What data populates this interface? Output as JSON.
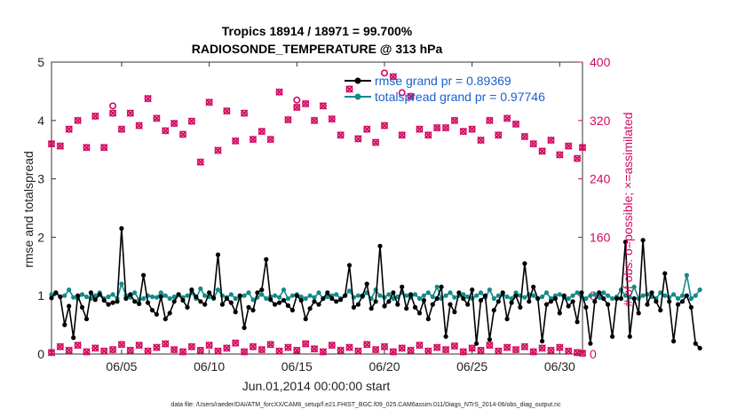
{
  "chart_data": {
    "type": "line",
    "title_line1": "Tropics 18914 / 18971 = 99.700%",
    "title_line2": "RADIOSONDE_TEMPERATURE @ 313 hPa",
    "xlabel": "Jun.01,2014 00:00:00 start",
    "ylabel_left": "rmse and totalspread",
    "ylabel_right": "# of obs: o=possible; ×=assimilated",
    "footnote": "data file: /Users/raeder/DAI/ATM_forcXX/CAM6_setup/f.e21.FHIST_BGC.f09_025.CAM6assim.011/Diags_NTrS_2014-06/obs_diag_output.nc",
    "xlim": [
      1,
      31.3
    ],
    "ylim_left": [
      0,
      5
    ],
    "ylim_right": [
      0,
      400
    ],
    "yticks_left": [
      "0",
      "1",
      "2",
      "3",
      "4",
      "5"
    ],
    "yticks_right": [
      "0",
      "80",
      "160",
      "240",
      "320",
      "400"
    ],
    "xticks": [
      {
        "day": 5,
        "label": "06/05"
      },
      {
        "day": 10,
        "label": "06/10"
      },
      {
        "day": 15,
        "label": "06/15"
      },
      {
        "day": 20,
        "label": "06/20"
      },
      {
        "day": 25,
        "label": "06/25"
      },
      {
        "day": 30,
        "label": "06/30"
      }
    ],
    "colors": {
      "rmse": "#000000",
      "spread": "#138a8a",
      "obs": "#d2095f",
      "legend_text": "#1a5fd0"
    },
    "series": [
      {
        "name": "rmse grand pr = 0.89369",
        "x_start": 1.0,
        "step": 0.25,
        "values": [
          0.96,
          1.05,
          0.98,
          0.5,
          0.82,
          0.28,
          1.0,
          0.8,
          0.6,
          1.05,
          0.93,
          1.02,
          0.92,
          0.85,
          0.88,
          0.9,
          2.15,
          0.95,
          1.02,
          0.9,
          0.86,
          1.35,
          0.88,
          0.75,
          0.68,
          0.98,
          0.6,
          0.7,
          0.9,
          1.02,
          0.92,
          0.8,
          1.1,
          0.98,
          0.9,
          0.85,
          1.05,
          0.96,
          1.7,
          0.85,
          0.95,
          0.88,
          0.72,
          1.0,
          0.45,
          0.8,
          0.75,
          1.05,
          1.1,
          1.62,
          0.93,
          0.85,
          0.88,
          0.92,
          0.83,
          0.75,
          1.0,
          0.92,
          0.6,
          0.78,
          0.9,
          0.85,
          0.95,
          1.05,
          0.95,
          0.9,
          0.93,
          1.0,
          1.52,
          0.8,
          0.85,
          1.0,
          1.2,
          0.78,
          0.9,
          1.85,
          0.82,
          0.9,
          1.05,
          0.85,
          1.15,
          0.78,
          1.02,
          0.8,
          0.7,
          0.92,
          0.6,
          0.85,
          0.95,
          1.15,
          0.3,
          0.85,
          0.72,
          1.05,
          0.95,
          0.85,
          1.1,
          0.18,
          0.92,
          1.0,
          0.25,
          0.75,
          0.9,
          1.05,
          0.6,
          0.88,
          1.0,
          0.8,
          1.55,
          0.9,
          1.15,
          0.95,
          0.22,
          0.85,
          0.9,
          0.95,
          0.7,
          1.0,
          0.82,
          0.9,
          0.55,
          1.05,
          0.8,
          0.18,
          0.9,
          1.05,
          0.95,
          0.85,
          0.3,
          0.95,
          0.95,
          1.92,
          0.3,
          0.95,
          0.7,
          1.95,
          0.85,
          1.05,
          0.9,
          0.75,
          1.38,
          0.9,
          0.22,
          0.85,
          0.9,
          1.0,
          0.8,
          0.18,
          0.1
        ]
      },
      {
        "name": "totalspread grand pr = 0.97746",
        "x_start": 1.0,
        "step": 0.25,
        "values": [
          1.02,
          1.05,
          0.98,
          1.0,
          1.1,
          0.97,
          0.95,
          1.02,
          0.98,
          0.95,
          1.0,
          1.05,
          0.95,
          0.98,
          1.02,
          0.95,
          1.2,
          1.0,
          0.97,
          1.05,
          0.93,
          0.95,
          1.0,
          0.98,
          0.97,
          1.05,
          1.0,
          0.95,
          0.98,
          1.02,
          0.97,
          1.0,
          1.05,
          0.95,
          1.12,
          1.0,
          0.98,
          0.95,
          1.1,
          1.0,
          0.97,
          1.02,
          0.95,
          0.98,
          1.0,
          1.05,
          0.93,
          0.97,
          1.02,
          0.95,
          0.98,
          1.0,
          0.97,
          1.1,
          0.95,
          1.0,
          1.02,
          0.98,
          0.95,
          1.0,
          0.97,
          1.05,
          0.95,
          0.98,
          1.0,
          1.02,
          0.95,
          1.0,
          1.08,
          0.97,
          1.0,
          0.98,
          1.05,
          0.95,
          1.1,
          1.0,
          0.97,
          1.02,
          0.95,
          0.98,
          1.05,
          1.0,
          0.97,
          1.02,
          0.95,
          1.0,
          1.05,
          0.98,
          1.15,
          0.95,
          1.0,
          1.05,
          0.97,
          1.0,
          1.02,
          0.98,
          0.95,
          1.0,
          1.05,
          0.97,
          1.1,
          0.95,
          1.0,
          1.02,
          0.98,
          0.95,
          1.05,
          1.0,
          0.97,
          1.02,
          1.0,
          0.95,
          0.98,
          1.05,
          0.95,
          1.0,
          1.02,
          0.97,
          0.95,
          1.0,
          1.05,
          0.98,
          0.95,
          1.0,
          1.02,
          0.97,
          1.05,
          1.0,
          0.95,
          0.98,
          1.1,
          1.0,
          0.97,
          1.15,
          0.95,
          1.0,
          1.02,
          0.98,
          0.95,
          1.05,
          1.0,
          0.97,
          1.02,
          0.95,
          1.0,
          1.35,
          0.95,
          1.0,
          1.1
        ]
      }
    ],
    "obs_possible_top": [
      {
        "x": 1.0,
        "y": 288
      },
      {
        "x": 1.5,
        "y": 285
      },
      {
        "x": 2.0,
        "y": 308
      },
      {
        "x": 2.5,
        "y": 320
      },
      {
        "x": 3.0,
        "y": 283
      },
      {
        "x": 3.5,
        "y": 326
      },
      {
        "x": 4.0,
        "y": 283
      },
      {
        "x": 4.5,
        "y": 330
      },
      {
        "x": 5.0,
        "y": 308
      },
      {
        "x": 5.5,
        "y": 330
      },
      {
        "x": 6.0,
        "y": 313
      },
      {
        "x": 6.5,
        "y": 350
      },
      {
        "x": 7.0,
        "y": 323
      },
      {
        "x": 7.5,
        "y": 306
      },
      {
        "x": 8.0,
        "y": 316
      },
      {
        "x": 8.5,
        "y": 301
      },
      {
        "x": 9.0,
        "y": 319
      },
      {
        "x": 9.5,
        "y": 263
      },
      {
        "x": 10.0,
        "y": 345
      },
      {
        "x": 10.5,
        "y": 279
      },
      {
        "x": 11.0,
        "y": 333
      },
      {
        "x": 11.5,
        "y": 292
      },
      {
        "x": 12.0,
        "y": 330
      },
      {
        "x": 12.5,
        "y": 294
      },
      {
        "x": 13.0,
        "y": 305
      },
      {
        "x": 13.5,
        "y": 294
      },
      {
        "x": 14.0,
        "y": 359
      },
      {
        "x": 14.5,
        "y": 321
      },
      {
        "x": 15.0,
        "y": 338
      },
      {
        "x": 15.5,
        "y": 343
      },
      {
        "x": 16.0,
        "y": 320
      },
      {
        "x": 16.5,
        "y": 340
      },
      {
        "x": 17.0,
        "y": 322
      },
      {
        "x": 17.5,
        "y": 300
      },
      {
        "x": 18.0,
        "y": 363
      },
      {
        "x": 18.5,
        "y": 295
      },
      {
        "x": 19.0,
        "y": 308
      },
      {
        "x": 19.5,
        "y": 290
      },
      {
        "x": 20.0,
        "y": 313
      },
      {
        "x": 20.5,
        "y": 380
      },
      {
        "x": 21.0,
        "y": 300
      },
      {
        "x": 21.5,
        "y": 353
      },
      {
        "x": 22.0,
        "y": 308
      },
      {
        "x": 22.5,
        "y": 300
      },
      {
        "x": 23.0,
        "y": 310
      },
      {
        "x": 23.5,
        "y": 310
      },
      {
        "x": 24.0,
        "y": 320
      },
      {
        "x": 24.5,
        "y": 305
      },
      {
        "x": 25.0,
        "y": 308
      },
      {
        "x": 25.5,
        "y": 293
      },
      {
        "x": 26.0,
        "y": 320
      },
      {
        "x": 26.5,
        "y": 300
      },
      {
        "x": 27.0,
        "y": 323
      },
      {
        "x": 27.5,
        "y": 315
      },
      {
        "x": 28.0,
        "y": 298
      },
      {
        "x": 28.5,
        "y": 288
      },
      {
        "x": 29.0,
        "y": 278
      },
      {
        "x": 29.5,
        "y": 293
      },
      {
        "x": 30.0,
        "y": 273
      },
      {
        "x": 30.5,
        "y": 285
      },
      {
        "x": 31.0,
        "y": 268
      },
      {
        "x": 31.3,
        "y": 283
      }
    ],
    "obs_possible_bottom": [
      {
        "x": 1.0,
        "y": 2
      },
      {
        "x": 1.5,
        "y": 10
      },
      {
        "x": 2.0,
        "y": 5
      },
      {
        "x": 2.5,
        "y": 12
      },
      {
        "x": 3.0,
        "y": 3
      },
      {
        "x": 3.5,
        "y": 8
      },
      {
        "x": 4.0,
        "y": 4
      },
      {
        "x": 4.5,
        "y": 6
      },
      {
        "x": 5.0,
        "y": 13
      },
      {
        "x": 5.5,
        "y": 5
      },
      {
        "x": 6.0,
        "y": 12
      },
      {
        "x": 6.5,
        "y": 4
      },
      {
        "x": 7.0,
        "y": 9
      },
      {
        "x": 7.5,
        "y": 14
      },
      {
        "x": 8.0,
        "y": 6
      },
      {
        "x": 8.5,
        "y": 3
      },
      {
        "x": 9.0,
        "y": 10
      },
      {
        "x": 9.5,
        "y": 5
      },
      {
        "x": 10.0,
        "y": 12
      },
      {
        "x": 10.5,
        "y": 4
      },
      {
        "x": 11.0,
        "y": 8
      },
      {
        "x": 11.5,
        "y": 15
      },
      {
        "x": 12.0,
        "y": 3
      },
      {
        "x": 12.5,
        "y": 10
      },
      {
        "x": 13.0,
        "y": 6
      },
      {
        "x": 13.5,
        "y": 13
      },
      {
        "x": 14.0,
        "y": 4
      },
      {
        "x": 14.5,
        "y": 9
      },
      {
        "x": 15.0,
        "y": 5
      },
      {
        "x": 15.5,
        "y": 14
      },
      {
        "x": 16.0,
        "y": 7
      },
      {
        "x": 16.5,
        "y": 3
      },
      {
        "x": 17.0,
        "y": 12
      },
      {
        "x": 17.5,
        "y": 5
      },
      {
        "x": 18.0,
        "y": 9
      },
      {
        "x": 18.5,
        "y": 4
      },
      {
        "x": 19.0,
        "y": 13
      },
      {
        "x": 19.5,
        "y": 6
      },
      {
        "x": 20.0,
        "y": 10
      },
      {
        "x": 20.5,
        "y": 3
      },
      {
        "x": 21.0,
        "y": 8
      },
      {
        "x": 21.5,
        "y": 5
      },
      {
        "x": 22.0,
        "y": 12
      },
      {
        "x": 22.5,
        "y": 4
      },
      {
        "x": 23.0,
        "y": 9
      },
      {
        "x": 23.5,
        "y": 6
      },
      {
        "x": 24.0,
        "y": 11
      },
      {
        "x": 24.5,
        "y": 3
      },
      {
        "x": 25.0,
        "y": 8
      },
      {
        "x": 25.5,
        "y": 5
      },
      {
        "x": 26.0,
        "y": 12
      },
      {
        "x": 26.5,
        "y": 4
      },
      {
        "x": 27.0,
        "y": 9
      },
      {
        "x": 27.5,
        "y": 6
      },
      {
        "x": 28.0,
        "y": 10
      },
      {
        "x": 28.5,
        "y": 3
      },
      {
        "x": 29.0,
        "y": 8
      },
      {
        "x": 29.5,
        "y": 5
      },
      {
        "x": 30.0,
        "y": 9
      },
      {
        "x": 30.5,
        "y": 4
      },
      {
        "x": 31.0,
        "y": 2
      },
      {
        "x": 31.3,
        "y": 1
      }
    ],
    "obs_possible_only_circles": [
      {
        "x": 4.5,
        "y": 340
      },
      {
        "x": 15.0,
        "y": 348
      },
      {
        "x": 20.0,
        "y": 385
      },
      {
        "x": 21.0,
        "y": 358
      }
    ]
  }
}
